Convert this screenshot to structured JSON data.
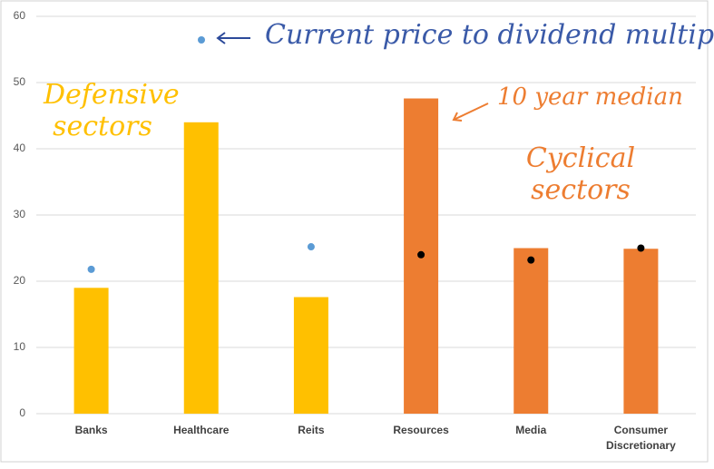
{
  "chart_data": {
    "type": "bar",
    "categories": [
      "Banks",
      "Healthcare",
      "Reits",
      "Resources",
      "Media",
      "Consumer Discretionary"
    ],
    "series": [
      {
        "name": "10 year median",
        "color": "#ed7d31",
        "values": [
          19,
          44,
          17.6,
          47.6,
          25,
          24.9
        ],
        "colors": [
          "#ffc000",
          "#ffc000",
          "#ffc000",
          "#ed7d31",
          "#ed7d31",
          "#ed7d31"
        ]
      },
      {
        "name": "Current price to dividend multiple",
        "color": "#3a5aa8",
        "marker_color": "#5b9bd5",
        "values": [
          21.8,
          null,
          25.2,
          24,
          23.2,
          25
        ],
        "colors": [
          "#5b9bd5",
          "#5b9bd5",
          "#5b9bd5",
          "#000000",
          "#000000",
          "#000000"
        ]
      }
    ],
    "annotations": [
      {
        "text": "Defensive sectors",
        "color": "#ffc000"
      },
      {
        "text": "Cyclical sectors",
        "color": "#ed7d31"
      }
    ],
    "ylim": [
      0,
      60
    ],
    "yticks": [
      0,
      10,
      20,
      30,
      40,
      50,
      60
    ],
    "grid": true
  }
}
